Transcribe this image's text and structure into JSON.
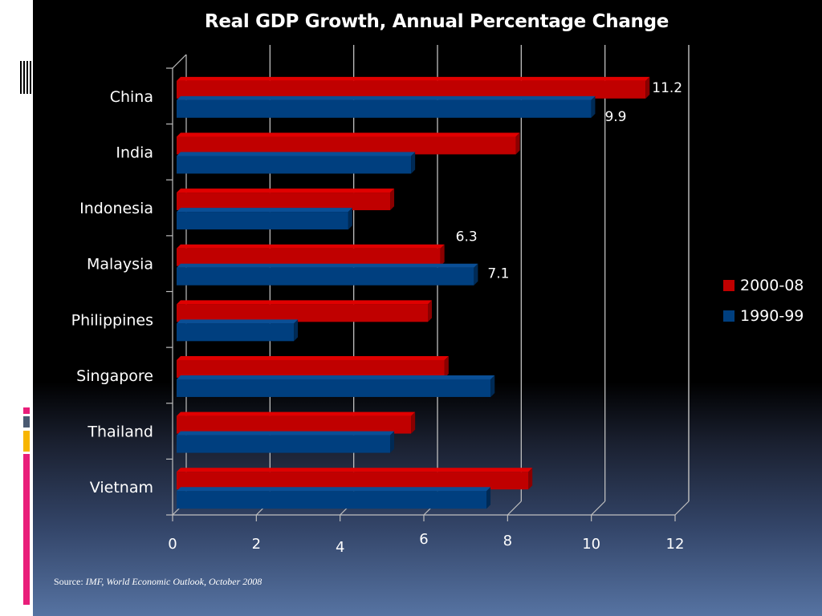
{
  "slide": {
    "source_prefix": "Source: ",
    "source_text": "IMF, World Economic Outlook, October 2008",
    "accent_colors": [
      "#e91e7a",
      "#4a5a72",
      "#f7b500",
      "#e91e7a"
    ]
  },
  "chart_data": {
    "type": "bar",
    "orientation": "horizontal",
    "title": "Real GDP Growth, Annual Percentage Change",
    "xlabel": "",
    "ylabel": "",
    "categories": [
      "China",
      "India",
      "Indonesia",
      "Malaysia",
      "Philippines",
      "Singapore",
      "Thailand",
      "Vietnam"
    ],
    "series": [
      {
        "name": "2000-08",
        "color": "#c00000",
        "values": [
          11.2,
          8.1,
          5.1,
          6.3,
          6.0,
          6.4,
          5.6,
          8.4
        ]
      },
      {
        "name": "1990-99",
        "color": "#003f7f",
        "values": [
          9.9,
          5.6,
          4.1,
          7.1,
          2.8,
          7.5,
          5.1,
          7.4
        ]
      }
    ],
    "xlim": [
      0,
      12
    ],
    "xticks": [
      "0",
      "2",
      "4",
      "6",
      "8",
      "10",
      "12"
    ],
    "grid": true,
    "legend_position": "right",
    "data_labels": [
      {
        "category": "China",
        "series": "2000-08",
        "text": "11.2"
      },
      {
        "category": "China",
        "series": "1990-99",
        "text": "9.9"
      },
      {
        "category": "Malaysia",
        "series": "2000-08",
        "text": "6.3"
      },
      {
        "category": "Malaysia",
        "series": "1990-99",
        "text": "7.1"
      }
    ]
  }
}
